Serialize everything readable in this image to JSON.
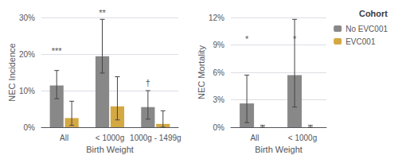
{
  "chart_data": [
    {
      "type": "bar",
      "categories": [
        "All",
        "< 1000g",
        "1000g - 1499g"
      ],
      "xlabel": "Birth Weight",
      "ylabel": "NEC Incidence",
      "series": [
        {
          "name": "No EVC001",
          "color": "#888888",
          "values": [
            0.114,
            0.194,
            0.055
          ],
          "ci_low": [
            0.078,
            0.148,
            0.022
          ],
          "ci_high": [
            0.155,
            0.295,
            0.1
          ]
        },
        {
          "name": "EVC001",
          "color": "#D4A843",
          "values": [
            0.025,
            0.057,
            0.009
          ],
          "ci_low": [
            0.005,
            0.02,
            0.0
          ],
          "ci_high": [
            0.071,
            0.138,
            0.045
          ]
        }
      ],
      "ylim": [
        0,
        0.3
      ],
      "yticks": [
        {
          "value": 0,
          "label": "0%"
        },
        {
          "value": 0.1,
          "label": "10%"
        },
        {
          "value": 0.2,
          "label": "20%"
        },
        {
          "value": 0.3,
          "label": "30%"
        }
      ],
      "grid": true,
      "annotations": [
        {
          "text": "***",
          "category": "All",
          "series": "No EVC001",
          "y": 0.195
        },
        {
          "text": "**",
          "category": "< 1000g",
          "series": "No EVC001",
          "y": 0.3
        },
        {
          "text": "†",
          "category": "1000g - 1499g",
          "series": "No EVC001",
          "y": 0.108
        }
      ]
    },
    {
      "type": "bar",
      "categories": [
        "All",
        "< 1000g"
      ],
      "xlabel": "Birth Weight",
      "ylabel": "NEC Mortality",
      "series": [
        {
          "name": "No EVC001",
          "color": "#888888",
          "values": [
            0.026,
            0.057
          ],
          "ci_low": [
            0.005,
            0.022
          ],
          "ci_high": [
            0.057,
            0.118
          ]
        },
        {
          "name": "EVC001",
          "color": "#D4A843",
          "values": [
            0.0,
            0.0
          ],
          "ci_low": [
            0.0,
            0.0
          ],
          "ci_high": [
            0.002,
            0.002
          ]
        }
      ],
      "ylim": [
        0,
        0.12
      ],
      "yticks": [
        {
          "value": 0,
          "label": "0%"
        },
        {
          "value": 0.03,
          "label": "3%"
        },
        {
          "value": 0.06,
          "label": "6%"
        },
        {
          "value": 0.09,
          "label": "9%"
        },
        {
          "value": 0.12,
          "label": "12%"
        }
      ],
      "grid": true,
      "legend": "upper right",
      "legend_title": "Cohort",
      "annotations": [
        {
          "text": "*",
          "category": "All",
          "series": "No EVC001",
          "y": 0.091
        },
        {
          "text": "*",
          "category": "< 1000g",
          "series": "No EVC001",
          "y": 0.091
        }
      ]
    }
  ]
}
